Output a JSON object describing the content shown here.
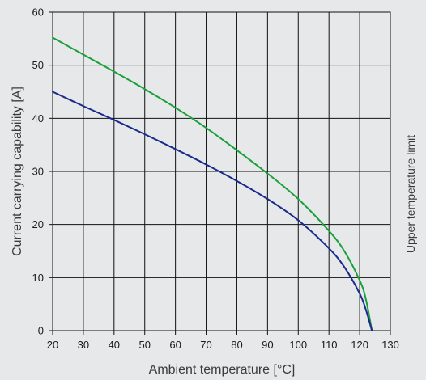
{
  "chart_data": {
    "type": "line",
    "xlabel": "Ambient temperature [°C]",
    "ylabel": "Current carrying capability [A]",
    "side_label": "Upper temperature limit",
    "xlim": [
      20,
      130
    ],
    "ylim": [
      0,
      60
    ],
    "x_ticks": [
      "20",
      "30",
      "40",
      "50",
      "60",
      "70",
      "80",
      "90",
      "100",
      "110",
      "120",
      "130"
    ],
    "y_ticks": [
      "0",
      "10",
      "20",
      "30",
      "40",
      "50",
      "60"
    ],
    "grid": true,
    "series": [
      {
        "color": "#1aa03a",
        "x": [
          20,
          30,
          40,
          50,
          60,
          70,
          80,
          90,
          100,
          110,
          115,
          120,
          122,
          124
        ],
        "y": [
          55.2,
          52,
          48.8,
          45.5,
          42,
          38.2,
          34,
          29.6,
          24.8,
          18.8,
          15,
          9.5,
          6,
          0
        ]
      },
      {
        "color": "#1a2a8a",
        "x": [
          20,
          30,
          40,
          50,
          60,
          70,
          80,
          90,
          100,
          110,
          115,
          120,
          122,
          124
        ],
        "y": [
          45,
          42.3,
          39.7,
          37,
          34.2,
          31.3,
          28.2,
          24.8,
          20.8,
          15.5,
          12,
          7,
          4,
          0
        ]
      }
    ]
  }
}
